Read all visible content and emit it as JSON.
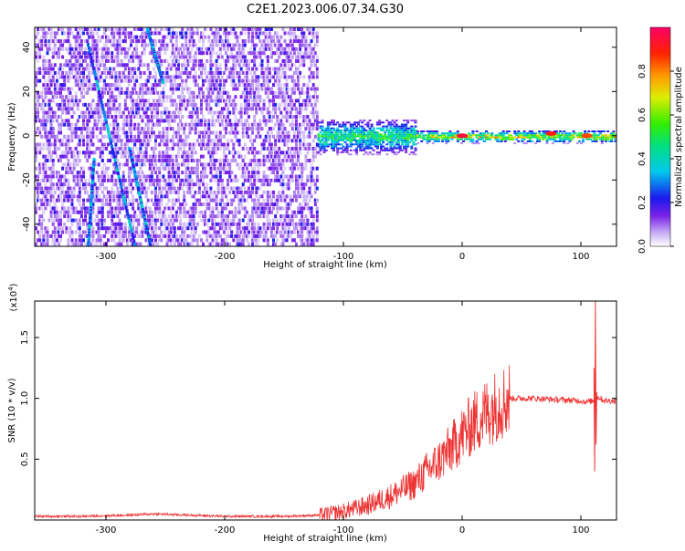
{
  "title": "C2E1.2023.006.07.34.G30",
  "chart_data": [
    {
      "type": "heatmap",
      "xlabel": "Height of straight line (km)",
      "ylabel": "Frequency (Hz)",
      "xlim": [
        -360,
        130
      ],
      "ylim": [
        -50,
        49
      ],
      "xticks": [
        -300,
        -200,
        -100,
        0,
        100
      ],
      "yticks": [
        -40,
        -20,
        0,
        20,
        40
      ],
      "colorbar": {
        "label": "Normalized spectral amplitude",
        "range": [
          0,
          1
        ],
        "ticks": [
          0.0,
          0.2,
          0.4,
          0.6,
          0.8
        ],
        "tick_labels": [
          "0.0",
          "0.2",
          "0.4",
          "0.6",
          "0.8"
        ]
      },
      "regions": [
        {
          "x": [
            -360,
            -122
          ],
          "freq_range": [
            -50,
            49
          ],
          "level": 0.15
        },
        {
          "x": [
            -122,
            -40
          ],
          "freq_range": [
            -8,
            8
          ],
          "level": 0.4
        },
        {
          "x": [
            -40,
            130
          ],
          "freq_range": [
            -3,
            3
          ],
          "level": 0.6
        }
      ],
      "streaks": [
        {
          "x": [
            -315,
            -275
          ],
          "y": [
            42,
            -50
          ]
        },
        {
          "x": [
            -265,
            -252
          ],
          "y": [
            49,
            25
          ]
        },
        {
          "x": [
            -310,
            -315
          ],
          "y": [
            -10,
            -50
          ]
        },
        {
          "x": [
            -280,
            -262
          ],
          "y": [
            -5,
            -50
          ]
        }
      ],
      "hot_spots": [
        {
          "x": 0,
          "y": 0,
          "level": 0.95
        },
        {
          "x": 75,
          "y": 1,
          "level": 0.9
        },
        {
          "x": 105,
          "y": 0,
          "level": 0.85
        }
      ]
    },
    {
      "type": "line",
      "xlabel": "Height of straight line (km)",
      "ylabel": "SNR (10 * v/v)",
      "y_multiplier": "(x10",
      "y_multiplier_exp": "4",
      "y_multiplier_close": ")",
      "xlim": [
        -360,
        130
      ],
      "ylim": [
        0,
        1.8
      ],
      "xticks": [
        -300,
        -200,
        -100,
        0,
        100
      ],
      "yticks": [
        0.5,
        1.0,
        1.5
      ],
      "ytick_labels": [
        "0.5",
        "1.0",
        "1.5"
      ],
      "color": "#ee3333",
      "series": [
        {
          "x": [
            -360,
            -320,
            -280,
            -260,
            -200,
            -150,
            -120,
            -100,
            -80,
            -60,
            -40,
            -30,
            -20,
            -10,
            0,
            10,
            20,
            30,
            40,
            60,
            80,
            100,
            105,
            110,
            112,
            115,
            120,
            130
          ],
          "values": [
            0.03,
            0.03,
            0.04,
            0.05,
            0.03,
            0.03,
            0.04,
            0.07,
            0.12,
            0.2,
            0.3,
            0.4,
            0.48,
            0.58,
            0.7,
            0.8,
            0.88,
            0.95,
            1.0,
            1.0,
            0.99,
            0.98,
            0.97,
            0.98,
            1.0,
            1.01,
            0.98,
            0.98
          ]
        }
      ],
      "spike": {
        "x": 111,
        "values": [
          1.25,
          0.4,
          1.8,
          0.62,
          1.05
        ]
      }
    }
  ]
}
